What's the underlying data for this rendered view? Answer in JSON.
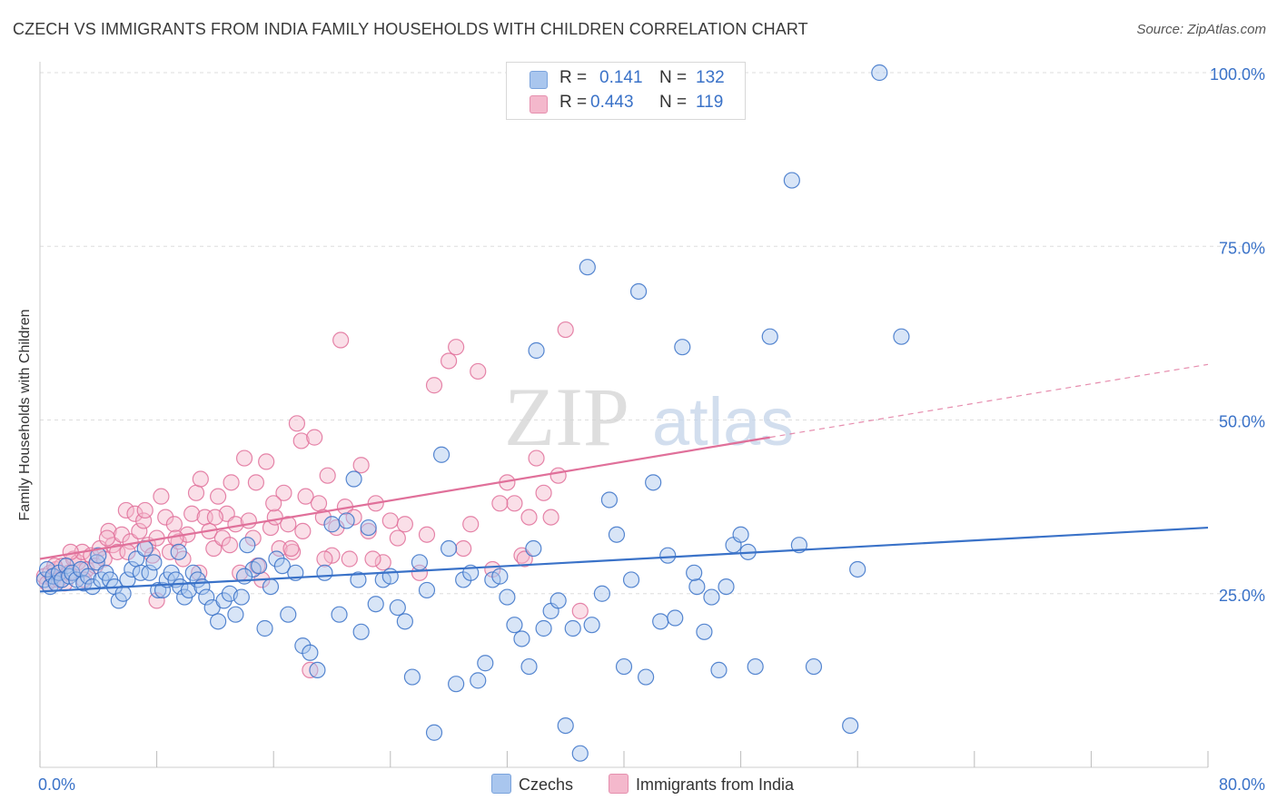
{
  "title": "CZECH VS IMMIGRANTS FROM INDIA FAMILY HOUSEHOLDS WITH CHILDREN CORRELATION CHART",
  "source": "Source: ZipAtlas.com",
  "watermark": {
    "zip": "ZIP",
    "atlas": "atlas"
  },
  "colors": {
    "blue": "#3a72c8",
    "blue_fill": "#a9c6ee",
    "pink": "#e0709a",
    "pink_fill": "#f4b8cc",
    "grid": "#dddddd"
  },
  "legend": {
    "rows": [
      {
        "r_label": "R =",
        "r_value": "0.141",
        "n_label": "N =",
        "n_value": "132"
      },
      {
        "r_label": "R =",
        "r_value": "0.443",
        "n_label": "N =",
        "n_value": "119"
      }
    ]
  },
  "chart_data": {
    "type": "scatter",
    "title": "CZECH VS IMMIGRANTS FROM INDIA FAMILY HOUSEHOLDS WITH CHILDREN CORRELATION CHART",
    "xlabel": "",
    "ylabel": "Family Households with Children",
    "xlim": [
      0,
      80
    ],
    "ylim": [
      0,
      103
    ],
    "x_tick_labels": [
      "0.0%",
      "80.0%"
    ],
    "y_tick_labels": [
      "25.0%",
      "50.0%",
      "75.0%",
      "100.0%"
    ],
    "y_ticks": [
      25,
      50,
      75,
      100
    ],
    "grid": true,
    "legend_position": "bottom",
    "series": [
      {
        "name": "Czechs",
        "trendline": {
          "x": [
            0,
            80
          ],
          "y": [
            25.3,
            34.5
          ]
        },
        "points": [
          [
            0.3,
            27.0
          ],
          [
            0.5,
            28.5
          ],
          [
            0.7,
            26.0
          ],
          [
            0.9,
            27.5
          ],
          [
            1.1,
            26.5
          ],
          [
            1.3,
            28.0
          ],
          [
            1.5,
            27.0
          ],
          [
            1.8,
            29.0
          ],
          [
            2.0,
            27.5
          ],
          [
            2.2,
            28.0
          ],
          [
            2.5,
            27.0
          ],
          [
            2.8,
            28.5
          ],
          [
            3.0,
            26.5
          ],
          [
            3.3,
            27.5
          ],
          [
            3.6,
            26.0
          ],
          [
            3.9,
            29.5
          ],
          [
            4.2,
            27.0
          ],
          [
            4.5,
            28.0
          ],
          [
            4.8,
            27.0
          ],
          [
            5.1,
            26.0
          ],
          [
            5.4,
            24.0
          ],
          [
            5.7,
            25.0
          ],
          [
            6.0,
            27.0
          ],
          [
            6.3,
            28.5
          ],
          [
            6.6,
            30.0
          ],
          [
            6.9,
            28.0
          ],
          [
            7.2,
            31.5
          ],
          [
            7.5,
            28.0
          ],
          [
            7.8,
            29.5
          ],
          [
            8.1,
            25.5
          ],
          [
            8.4,
            25.5
          ],
          [
            8.7,
            27.0
          ],
          [
            9.0,
            28.0
          ],
          [
            9.3,
            27.0
          ],
          [
            9.6,
            26.0
          ],
          [
            9.9,
            24.5
          ],
          [
            10.2,
            25.5
          ],
          [
            10.5,
            28.0
          ],
          [
            10.8,
            27.0
          ],
          [
            11.1,
            26.0
          ],
          [
            11.4,
            24.5
          ],
          [
            11.8,
            23.0
          ],
          [
            12.2,
            21.0
          ],
          [
            12.6,
            24.0
          ],
          [
            13.0,
            25.0
          ],
          [
            13.4,
            22.0
          ],
          [
            13.8,
            24.5
          ],
          [
            14.2,
            32.0
          ],
          [
            14.6,
            28.5
          ],
          [
            15.0,
            29.0
          ],
          [
            15.4,
            20.0
          ],
          [
            15.8,
            26.0
          ],
          [
            16.2,
            30.0
          ],
          [
            16.6,
            29.0
          ],
          [
            17.0,
            22.0
          ],
          [
            17.5,
            28.0
          ],
          [
            18.0,
            17.5
          ],
          [
            18.5,
            16.5
          ],
          [
            19.0,
            14.0
          ],
          [
            19.5,
            28.0
          ],
          [
            20.0,
            35.0
          ],
          [
            20.5,
            22.0
          ],
          [
            21.0,
            35.5
          ],
          [
            21.5,
            41.5
          ],
          [
            22.0,
            19.5
          ],
          [
            22.5,
            34.5
          ],
          [
            23.0,
            23.5
          ],
          [
            23.5,
            27.0
          ],
          [
            24.0,
            27.5
          ],
          [
            24.5,
            23.0
          ],
          [
            25.0,
            21.0
          ],
          [
            25.5,
            13.0
          ],
          [
            26.0,
            29.5
          ],
          [
            26.5,
            25.5
          ],
          [
            27.0,
            5.0
          ],
          [
            27.5,
            45.0
          ],
          [
            28.0,
            31.5
          ],
          [
            28.5,
            12.0
          ],
          [
            29.0,
            27.0
          ],
          [
            29.5,
            28.0
          ],
          [
            30.0,
            12.5
          ],
          [
            30.5,
            15.0
          ],
          [
            31.0,
            27.0
          ],
          [
            31.5,
            27.5
          ],
          [
            32.0,
            24.5
          ],
          [
            32.5,
            20.5
          ],
          [
            33.0,
            18.5
          ],
          [
            33.5,
            14.5
          ],
          [
            34.0,
            60.0
          ],
          [
            34.5,
            20.0
          ],
          [
            35.0,
            22.5
          ],
          [
            35.5,
            24.0
          ],
          [
            36.0,
            6.0
          ],
          [
            36.5,
            20.0
          ],
          [
            37.0,
            2.0
          ],
          [
            37.5,
            72.0
          ],
          [
            37.8,
            20.5
          ],
          [
            38.5,
            25.0
          ],
          [
            39.0,
            38.5
          ],
          [
            39.5,
            33.5
          ],
          [
            40.0,
            14.5
          ],
          [
            40.5,
            27.0
          ],
          [
            41.0,
            68.5
          ],
          [
            41.5,
            13.0
          ],
          [
            42.0,
            41.0
          ],
          [
            42.5,
            21.0
          ],
          [
            43.0,
            30.5
          ],
          [
            43.5,
            21.5
          ],
          [
            44.0,
            60.5
          ],
          [
            45.0,
            26.0
          ],
          [
            45.5,
            19.5
          ],
          [
            46.0,
            24.5
          ],
          [
            46.5,
            14.0
          ],
          [
            47.0,
            26.0
          ],
          [
            47.5,
            32.0
          ],
          [
            48.0,
            33.5
          ],
          [
            48.5,
            31.0
          ],
          [
            49.0,
            14.5
          ],
          [
            50.0,
            62.0
          ],
          [
            51.5,
            84.5
          ],
          [
            52.0,
            32.0
          ],
          [
            53.0,
            14.5
          ],
          [
            55.5,
            6.0
          ],
          [
            56.0,
            28.5
          ],
          [
            57.5,
            100.0
          ],
          [
            59.0,
            62.0
          ],
          [
            4.0,
            30.5
          ],
          [
            9.5,
            31.0
          ],
          [
            14.0,
            27.5
          ],
          [
            21.8,
            27.0
          ],
          [
            33.8,
            31.5
          ],
          [
            44.8,
            28.0
          ]
        ]
      },
      {
        "name": "Immigrants from India",
        "trendline": {
          "x": [
            0,
            50
          ],
          "y": [
            30.0,
            47.5
          ]
        },
        "trendline_dashed": {
          "x": [
            50,
            80
          ],
          "y": [
            47.5,
            58.0
          ]
        },
        "points": [
          [
            0.3,
            27.5
          ],
          [
            0.5,
            26.5
          ],
          [
            0.7,
            28.0
          ],
          [
            0.9,
            27.0
          ],
          [
            1.1,
            28.5
          ],
          [
            1.3,
            27.0
          ],
          [
            1.5,
            29.0
          ],
          [
            1.7,
            26.5
          ],
          [
            2.0,
            28.0
          ],
          [
            2.3,
            30.0
          ],
          [
            2.6,
            29.5
          ],
          [
            2.9,
            31.0
          ],
          [
            3.2,
            28.5
          ],
          [
            3.5,
            30.5
          ],
          [
            3.8,
            29.0
          ],
          [
            4.1,
            31.5
          ],
          [
            4.4,
            30.0
          ],
          [
            4.7,
            34.0
          ],
          [
            5.0,
            32.0
          ],
          [
            5.3,
            31.0
          ],
          [
            5.6,
            33.5
          ],
          [
            5.9,
            37.0
          ],
          [
            6.2,
            32.5
          ],
          [
            6.5,
            36.5
          ],
          [
            6.8,
            34.0
          ],
          [
            7.1,
            35.5
          ],
          [
            7.4,
            32.0
          ],
          [
            7.7,
            30.5
          ],
          [
            8.0,
            33.0
          ],
          [
            8.3,
            39.0
          ],
          [
            8.6,
            36.0
          ],
          [
            8.9,
            31.0
          ],
          [
            9.2,
            35.0
          ],
          [
            9.5,
            32.5
          ],
          [
            9.8,
            30.0
          ],
          [
            10.1,
            33.5
          ],
          [
            10.4,
            36.5
          ],
          [
            10.7,
            39.5
          ],
          [
            11.0,
            41.5
          ],
          [
            11.3,
            36.0
          ],
          [
            11.6,
            34.0
          ],
          [
            11.9,
            31.5
          ],
          [
            12.2,
            39.0
          ],
          [
            12.5,
            33.0
          ],
          [
            12.8,
            36.5
          ],
          [
            13.1,
            41.0
          ],
          [
            13.4,
            35.0
          ],
          [
            13.7,
            28.0
          ],
          [
            14.0,
            44.5
          ],
          [
            14.3,
            35.5
          ],
          [
            14.6,
            33.0
          ],
          [
            14.9,
            29.0
          ],
          [
            15.2,
            27.0
          ],
          [
            15.5,
            44.0
          ],
          [
            15.8,
            34.5
          ],
          [
            16.1,
            36.0
          ],
          [
            16.4,
            31.5
          ],
          [
            16.7,
            39.5
          ],
          [
            17.0,
            35.0
          ],
          [
            17.3,
            31.0
          ],
          [
            17.6,
            49.5
          ],
          [
            17.9,
            47.0
          ],
          [
            18.2,
            39.0
          ],
          [
            18.5,
            14.0
          ],
          [
            18.8,
            47.5
          ],
          [
            19.1,
            38.0
          ],
          [
            19.4,
            36.0
          ],
          [
            19.7,
            42.0
          ],
          [
            20.0,
            30.5
          ],
          [
            20.3,
            34.5
          ],
          [
            20.6,
            61.5
          ],
          [
            20.9,
            37.5
          ],
          [
            21.2,
            30.0
          ],
          [
            22.0,
            43.5
          ],
          [
            22.5,
            34.0
          ],
          [
            23.0,
            38.0
          ],
          [
            23.5,
            29.5
          ],
          [
            24.0,
            35.5
          ],
          [
            25.0,
            35.0
          ],
          [
            26.0,
            28.0
          ],
          [
            27.0,
            55.0
          ],
          [
            28.0,
            58.5
          ],
          [
            28.5,
            60.5
          ],
          [
            29.0,
            31.5
          ],
          [
            30.0,
            57.0
          ],
          [
            31.0,
            28.5
          ],
          [
            32.0,
            41.0
          ],
          [
            32.5,
            38.0
          ],
          [
            33.0,
            30.5
          ],
          [
            33.5,
            36.0
          ],
          [
            34.0,
            44.5
          ],
          [
            34.5,
            39.5
          ],
          [
            35.0,
            36.0
          ],
          [
            36.0,
            63.0
          ],
          [
            37.0,
            22.5
          ],
          [
            1.0,
            29.0
          ],
          [
            2.1,
            31.0
          ],
          [
            3.0,
            27.0
          ],
          [
            4.6,
            33.0
          ],
          [
            6.0,
            31.0
          ],
          [
            7.2,
            37.0
          ],
          [
            9.3,
            33.0
          ],
          [
            10.9,
            28.0
          ],
          [
            12.0,
            36.0
          ],
          [
            13.0,
            32.0
          ],
          [
            14.8,
            41.0
          ],
          [
            16.0,
            38.0
          ],
          [
            17.2,
            31.5
          ],
          [
            18.0,
            34.0
          ],
          [
            19.5,
            30.0
          ],
          [
            21.5,
            36.0
          ],
          [
            22.8,
            30.0
          ],
          [
            24.5,
            33.0
          ],
          [
            26.5,
            33.5
          ],
          [
            29.5,
            35.0
          ],
          [
            31.5,
            38.0
          ],
          [
            33.2,
            30.0
          ],
          [
            35.5,
            42.0
          ],
          [
            8.0,
            24.0
          ]
        ]
      }
    ]
  },
  "bottom_legend": [
    {
      "label": "Czechs"
    },
    {
      "label": "Immigrants from India"
    }
  ]
}
